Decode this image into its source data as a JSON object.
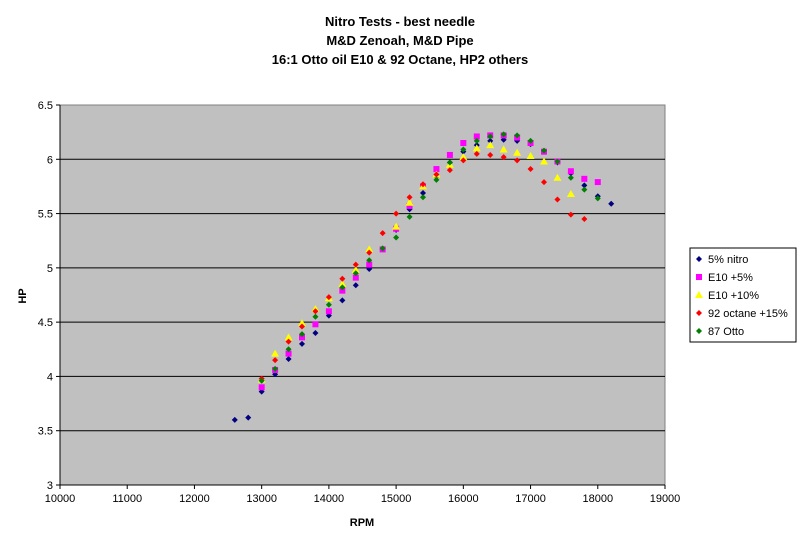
{
  "chart_data": {
    "type": "scatter",
    "title_lines": [
      "Nitro Tests - best needle",
      "M&D Zenoah, M&D Pipe",
      "16:1 Otto oil E10 & 92 Octane, HP2 others"
    ],
    "xlabel": "RPM",
    "ylabel": "HP",
    "xlim": [
      10000,
      19000
    ],
    "ylim": [
      3,
      6.5
    ],
    "xticks": [
      10000,
      11000,
      12000,
      13000,
      14000,
      15000,
      16000,
      17000,
      18000,
      19000
    ],
    "yticks": [
      3,
      3.5,
      4,
      4.5,
      5,
      5.5,
      6,
      6.5
    ],
    "grid": "horizontal",
    "plot_background": "#c0c0c0",
    "legend_position": "right",
    "series": [
      {
        "name": "5% nitro",
        "color": "#000080",
        "marker": "diamond",
        "points": [
          [
            12600,
            3.6
          ],
          [
            12800,
            3.62
          ],
          [
            13000,
            3.86
          ],
          [
            13200,
            4.02
          ],
          [
            13400,
            4.16
          ],
          [
            13600,
            4.3
          ],
          [
            13800,
            4.4
          ],
          [
            14000,
            4.56
          ],
          [
            14200,
            4.7
          ],
          [
            14400,
            4.84
          ],
          [
            14600,
            4.99
          ],
          [
            14800,
            5.17
          ],
          [
            15000,
            5.35
          ],
          [
            15200,
            5.54
          ],
          [
            15400,
            5.69
          ],
          [
            15600,
            5.84
          ],
          [
            15800,
            5.97
          ],
          [
            16000,
            6.07
          ],
          [
            16200,
            6.13
          ],
          [
            16400,
            6.17
          ],
          [
            16600,
            6.18
          ],
          [
            16800,
            6.17
          ],
          [
            17000,
            6.14
          ],
          [
            17200,
            6.07
          ],
          [
            17400,
            5.97
          ],
          [
            17600,
            5.87
          ],
          [
            17800,
            5.76
          ],
          [
            18000,
            5.66
          ],
          [
            18200,
            5.59
          ]
        ]
      },
      {
        "name": "E10 +5%",
        "color": "#ff00ff",
        "marker": "square",
        "points": [
          [
            13000,
            3.9
          ],
          [
            13200,
            4.06
          ],
          [
            13400,
            4.21
          ],
          [
            13600,
            4.36
          ],
          [
            13800,
            4.48
          ],
          [
            14000,
            4.6
          ],
          [
            14200,
            4.79
          ],
          [
            14400,
            4.91
          ],
          [
            14600,
            5.03
          ],
          [
            14800,
            5.17
          ],
          [
            15000,
            5.36
          ],
          [
            15200,
            5.57
          ],
          [
            15400,
            5.75
          ],
          [
            15600,
            5.91
          ],
          [
            15800,
            6.04
          ],
          [
            16000,
            6.15
          ],
          [
            16200,
            6.21
          ],
          [
            16400,
            6.22
          ],
          [
            16600,
            6.22
          ],
          [
            16800,
            6.2
          ],
          [
            17000,
            6.15
          ],
          [
            17200,
            6.07
          ],
          [
            17400,
            5.98
          ],
          [
            17600,
            5.89
          ],
          [
            17800,
            5.82
          ],
          [
            18000,
            5.79
          ]
        ]
      },
      {
        "name": "E10 +10%",
        "color": "#ffff00",
        "marker": "triangle",
        "points": [
          [
            13000,
            3.97
          ],
          [
            13200,
            4.21
          ],
          [
            13400,
            4.36
          ],
          [
            13600,
            4.49
          ],
          [
            13800,
            4.62
          ],
          [
            14000,
            4.72
          ],
          [
            14200,
            4.85
          ],
          [
            14400,
            4.98
          ],
          [
            14600,
            5.17
          ],
          [
            15000,
            5.38
          ],
          [
            15200,
            5.6
          ],
          [
            15400,
            5.75
          ],
          [
            15600,
            5.86
          ],
          [
            15800,
            5.95
          ],
          [
            16000,
            6.02
          ],
          [
            16200,
            6.1
          ],
          [
            16400,
            6.13
          ],
          [
            16600,
            6.09
          ],
          [
            16800,
            6.06
          ],
          [
            17000,
            6.03
          ],
          [
            17200,
            5.98
          ],
          [
            17400,
            5.83
          ],
          [
            17600,
            5.68
          ]
        ]
      },
      {
        "name": "92 octane +15%",
        "color": "#ff0000",
        "marker": "diamond",
        "points": [
          [
            13000,
            3.98
          ],
          [
            13200,
            4.15
          ],
          [
            13400,
            4.32
          ],
          [
            13600,
            4.46
          ],
          [
            13800,
            4.6
          ],
          [
            14000,
            4.73
          ],
          [
            14200,
            4.9
          ],
          [
            14400,
            5.03
          ],
          [
            14600,
            5.14
          ],
          [
            14800,
            5.32
          ],
          [
            15000,
            5.5
          ],
          [
            15200,
            5.65
          ],
          [
            15400,
            5.77
          ],
          [
            15600,
            5.86
          ],
          [
            15800,
            5.9
          ],
          [
            16000,
            5.99
          ],
          [
            16200,
            6.05
          ],
          [
            16400,
            6.04
          ],
          [
            16600,
            6.02
          ],
          [
            16800,
            5.99
          ],
          [
            17000,
            5.91
          ],
          [
            17200,
            5.79
          ],
          [
            17400,
            5.63
          ],
          [
            17600,
            5.49
          ],
          [
            17800,
            5.45
          ]
        ]
      },
      {
        "name": "87 Otto",
        "color": "#008000",
        "marker": "diamond",
        "points": [
          [
            13000,
            3.96
          ],
          [
            13200,
            4.07
          ],
          [
            13400,
            4.25
          ],
          [
            13600,
            4.39
          ],
          [
            13800,
            4.55
          ],
          [
            14000,
            4.66
          ],
          [
            14200,
            4.82
          ],
          [
            14400,
            4.95
          ],
          [
            14600,
            5.07
          ],
          [
            14800,
            5.18
          ],
          [
            15000,
            5.28
          ],
          [
            15200,
            5.47
          ],
          [
            15400,
            5.65
          ],
          [
            15600,
            5.81
          ],
          [
            15800,
            5.97
          ],
          [
            16000,
            6.09
          ],
          [
            16200,
            6.17
          ],
          [
            16400,
            6.21
          ],
          [
            16600,
            6.23
          ],
          [
            16800,
            6.22
          ],
          [
            17000,
            6.17
          ],
          [
            17200,
            6.08
          ],
          [
            17400,
            5.98
          ],
          [
            17600,
            5.83
          ],
          [
            17800,
            5.72
          ],
          [
            18000,
            5.64
          ]
        ]
      }
    ]
  }
}
